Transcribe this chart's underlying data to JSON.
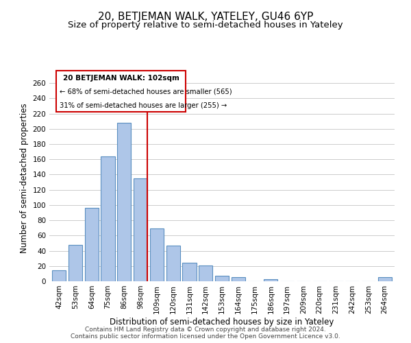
{
  "title": "20, BETJEMAN WALK, YATELEY, GU46 6YP",
  "subtitle": "Size of property relative to semi-detached houses in Yateley",
  "xlabel": "Distribution of semi-detached houses by size in Yateley",
  "ylabel": "Number of semi-detached properties",
  "footer_line1": "Contains HM Land Registry data © Crown copyright and database right 2024.",
  "footer_line2": "Contains public sector information licensed under the Open Government Licence v3.0.",
  "annotation_title": "20 BETJEMAN WALK: 102sqm",
  "annotation_line2": "← 68% of semi-detached houses are smaller (565)",
  "annotation_line3": "31% of semi-detached houses are larger (255) →",
  "bar_labels": [
    "42sqm",
    "53sqm",
    "64sqm",
    "75sqm",
    "86sqm",
    "98sqm",
    "109sqm",
    "120sqm",
    "131sqm",
    "142sqm",
    "153sqm",
    "164sqm",
    "175sqm",
    "186sqm",
    "197sqm",
    "209sqm",
    "220sqm",
    "231sqm",
    "242sqm",
    "253sqm",
    "264sqm"
  ],
  "bar_values": [
    14,
    48,
    96,
    164,
    208,
    135,
    69,
    47,
    24,
    21,
    7,
    5,
    0,
    3,
    0,
    0,
    0,
    0,
    0,
    0,
    5
  ],
  "bar_color": "#aec6e8",
  "bar_edge_color": "#5a8fc0",
  "highlight_line_color": "#cc0000",
  "ylim": [
    0,
    270
  ],
  "yticks": [
    0,
    20,
    40,
    60,
    80,
    100,
    120,
    140,
    160,
    180,
    200,
    220,
    240,
    260
  ],
  "background_color": "#ffffff",
  "grid_color": "#cccccc",
  "annotation_box_edge_color": "#cc0000",
  "title_fontsize": 11,
  "subtitle_fontsize": 9.5,
  "axis_label_fontsize": 8.5,
  "tick_fontsize": 7.5,
  "footer_fontsize": 6.5
}
